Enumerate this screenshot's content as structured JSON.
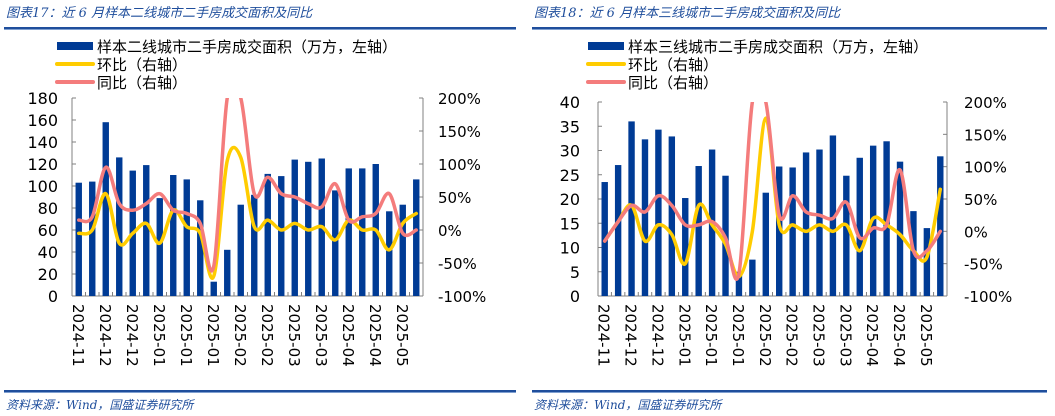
{
  "colors": {
    "bar": "#003b95",
    "mom": "#ffcc00",
    "yoy": "#f47c7c",
    "accent": "#1f4e9c",
    "axis": "#808080"
  },
  "source_text": "资料来源：Wind，国盛证券研究所",
  "charts": [
    {
      "title": "图表17：近 6 月样本二线城市二手房成交面积及同比",
      "legend": [
        "样本二线城市二手房成交面积（万方，左轴）",
        "环比（右轴）",
        "同比（右轴）"
      ]
    },
    {
      "title": "图表18：近 6 月样本三线城市二手房成交面积及同比",
      "legend": [
        "样本三线城市二手房成交面积（万方，左轴）",
        "环比（右轴）",
        "同比（右轴）"
      ]
    }
  ],
  "chart_data": [
    {
      "type": "bar",
      "title": "图表17：近 6 月样本二线城市二手房成交面积及同比",
      "xlabel": "",
      "ylabel": "万方",
      "ylabel_right": "%",
      "ylim": [
        0,
        180
      ],
      "ylim_right": [
        -100,
        200
      ],
      "yticks": [
        0,
        20,
        40,
        60,
        80,
        100,
        120,
        140,
        160,
        180
      ],
      "yticks_right": [
        "-100%",
        "-50%",
        "0%",
        "50%",
        "100%",
        "150%",
        "200%"
      ],
      "xtick_labels": [
        "2024-11",
        "2024-12",
        "2024-12",
        "2025-01",
        "2025-01",
        "2025-01",
        "2025-02",
        "2025-02",
        "2025-03",
        "2025-03",
        "2025-04",
        "2025-04",
        "2025-05"
      ],
      "legend_position": "top-left",
      "grid": false,
      "categories": [
        "1",
        "2",
        "3",
        "4",
        "5",
        "6",
        "7",
        "8",
        "9",
        "10",
        "11",
        "12",
        "13",
        "14",
        "15",
        "16",
        "17",
        "18",
        "19",
        "20",
        "21",
        "22",
        "23",
        "24",
        "25",
        "26"
      ],
      "series": [
        {
          "name": "样本二线城市二手房成交面积（万方，左轴）",
          "axis": "left",
          "type": "bar",
          "values": [
            103,
            104,
            158,
            126,
            114,
            119,
            89,
            110,
            106,
            87,
            13,
            42,
            83,
            92,
            111,
            109,
            124,
            122,
            125,
            96,
            116,
            116,
            120,
            77,
            83,
            106
          ]
        },
        {
          "name": "环比（右轴）",
          "axis": "right",
          "type": "line",
          "values": [
            -5,
            0,
            55,
            -20,
            -5,
            10,
            -20,
            30,
            5,
            -5,
            -70,
            105,
            110,
            5,
            15,
            0,
            10,
            0,
            5,
            -15,
            15,
            0,
            0,
            -30,
            10,
            25
          ]
        },
        {
          "name": "同比（右轴）",
          "axis": "right",
          "type": "line",
          "values": [
            15,
            20,
            95,
            40,
            30,
            40,
            55,
            30,
            25,
            10,
            -55,
            200,
            200,
            55,
            80,
            55,
            50,
            40,
            35,
            70,
            15,
            20,
            25,
            55,
            -5,
            0
          ]
        }
      ]
    },
    {
      "type": "bar",
      "title": "图表18：近 6 月样本三线城市二手房成交面积及同比",
      "xlabel": "",
      "ylabel": "万方",
      "ylabel_right": "%",
      "ylim": [
        0,
        40
      ],
      "ylim_right": [
        -100,
        200
      ],
      "yticks": [
        0,
        5,
        10,
        15,
        20,
        25,
        30,
        35,
        40
      ],
      "yticks_right": [
        "-100%",
        "-50%",
        "0%",
        "50%",
        "100%",
        "150%",
        "200%"
      ],
      "xtick_labels": [
        "2024-11",
        "2024-12",
        "2024-12",
        "2025-01",
        "2025-01",
        "2025-01",
        "2025-02",
        "2025-02",
        "2025-03",
        "2025-03",
        "2025-04",
        "2025-04",
        "2025-05"
      ],
      "legend_position": "top-left",
      "grid": false,
      "categories": [
        "1",
        "2",
        "3",
        "4",
        "5",
        "6",
        "7",
        "8",
        "9",
        "10",
        "11",
        "12",
        "13",
        "14",
        "15",
        "16",
        "17",
        "18",
        "19",
        "20",
        "21",
        "22",
        "23",
        "24",
        "25",
        "26"
      ],
      "series": [
        {
          "name": "样本三线城市二手房成交面积（万方，左轴）",
          "axis": "left",
          "type": "bar",
          "values": [
            23.5,
            27,
            36,
            32.3,
            34.3,
            32.9,
            20.2,
            26.8,
            30.2,
            24.8,
            5,
            7.5,
            21.3,
            26.7,
            26.5,
            29.6,
            30.2,
            33.1,
            24.8,
            28.5,
            31,
            31.9,
            27.7,
            17.5,
            14,
            28.8
          ]
        },
        {
          "name": "环比（右轴）",
          "axis": "right",
          "type": "line",
          "values": [
            -15,
            15,
            40,
            -15,
            10,
            -5,
            -50,
            40,
            10,
            -20,
            -70,
            0,
            175,
            10,
            10,
            0,
            10,
            0,
            10,
            -30,
            20,
            10,
            -5,
            -30,
            -40,
            65
          ]
        },
        {
          "name": "同比（右轴）",
          "axis": "right",
          "type": "line",
          "values": [
            -15,
            15,
            40,
            30,
            55,
            40,
            10,
            10,
            15,
            -10,
            -65,
            200,
            200,
            25,
            55,
            30,
            25,
            20,
            45,
            -10,
            5,
            10,
            95,
            -30,
            -30,
            0
          ]
        }
      ]
    }
  ]
}
